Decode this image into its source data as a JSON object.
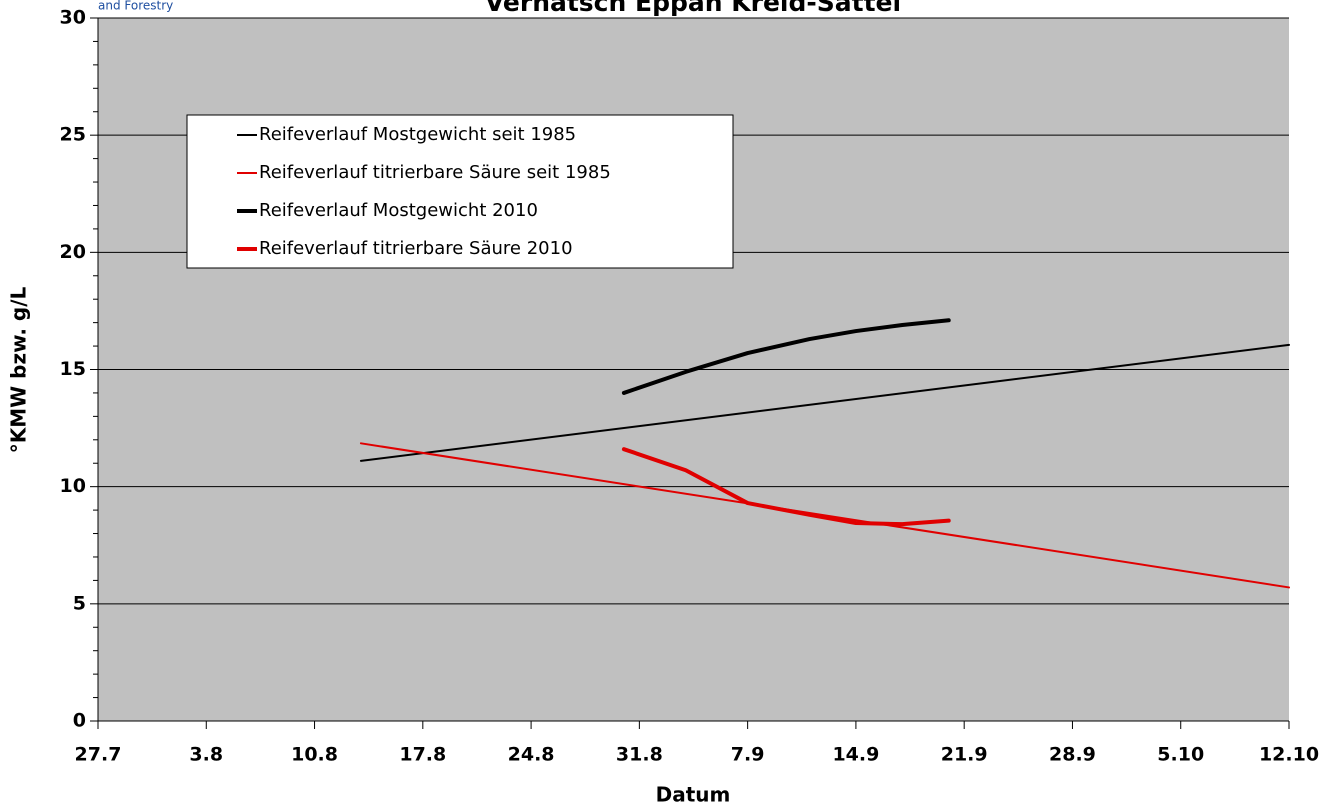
{
  "chart_data": {
    "type": "line",
    "title": "Vernatsch Eppan Kreid-Sattel",
    "logo_text": "and Forestry",
    "x_label": "Datum",
    "y_label": "°KMW bzw. g/L",
    "categories": [
      "27.7",
      "3.8",
      "10.8",
      "17.8",
      "24.8",
      "31.8",
      "7.9",
      "14.9",
      "21.9",
      "28.9",
      "5.10",
      "12.10"
    ],
    "ylim": [
      0,
      30
    ],
    "yticks": [
      0,
      5,
      10,
      15,
      20,
      25,
      30
    ],
    "yminorticks": [
      1,
      2,
      3,
      4,
      6,
      7,
      8,
      9,
      11,
      12,
      13,
      14,
      16,
      17,
      18,
      19,
      21,
      22,
      23,
      24,
      26,
      27,
      28,
      29
    ],
    "grid": true,
    "background": "#c0c0c0",
    "series": [
      {
        "name": "Reifeverlauf Mostgewicht seit 1985",
        "color": "#000000",
        "line_width": 2,
        "x": [
          "13.8",
          "12.10"
        ],
        "values": [
          11.1,
          16.05
        ]
      },
      {
        "name": "Reifeverlauf titrierbare Säure seit 1985",
        "color": "#e00000",
        "line_width": 2,
        "x": [
          "13.8",
          "12.10"
        ],
        "values": [
          11.85,
          5.7
        ]
      },
      {
        "name": "Reifeverlauf Mostgewicht 2010",
        "color": "#000000",
        "line_width": 4,
        "x": [
          "30.8",
          "3.9",
          "7.9",
          "11.9",
          "14.9",
          "17.9",
          "20.9"
        ],
        "values": [
          14.0,
          14.9,
          15.7,
          16.3,
          16.64,
          16.9,
          17.1
        ]
      },
      {
        "name": "Reifeverlauf titrierbare Säure 2010",
        "color": "#e00000",
        "line_width": 4,
        "x": [
          "30.8",
          "3.9",
          "7.9",
          "11.9",
          "14.9",
          "17.9",
          "20.9"
        ],
        "values": [
          11.6,
          10.7,
          9.3,
          8.8,
          8.45,
          8.4,
          8.55
        ]
      }
    ]
  }
}
